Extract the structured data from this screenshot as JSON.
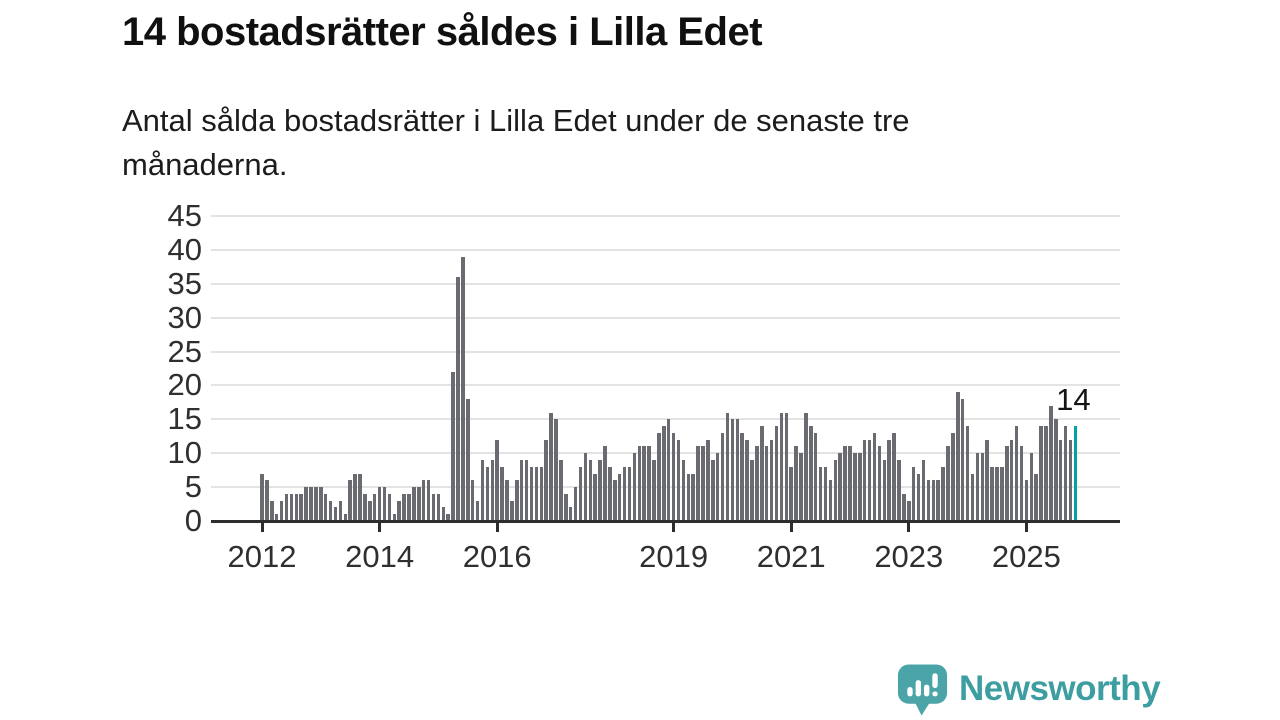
{
  "header": {
    "title": "14 bostadsrätter såldes i Lilla Edet",
    "subtitle_line1": "Antal sålda bostadsrätter i Lilla Edet under de senaste tre",
    "subtitle_line2": "månaderna."
  },
  "chart_data": {
    "type": "bar",
    "title": "14 bostadsrätter såldes i Lilla Edet",
    "subtitle": "Antal sålda bostadsrätter i Lilla Edet under de senaste tre månaderna.",
    "x_start": "2012-01",
    "x_end": "2025-11",
    "x_unit": "month",
    "values": [
      7,
      6,
      3,
      1,
      3,
      4,
      4,
      4,
      4,
      5,
      5,
      5,
      5,
      4,
      3,
      2,
      3,
      1,
      6,
      7,
      7,
      4,
      3,
      4,
      5,
      5,
      4,
      1,
      3,
      4,
      4,
      5,
      5,
      6,
      6,
      4,
      4,
      2,
      1,
      22,
      36,
      39,
      18,
      6,
      3,
      9,
      8,
      9,
      12,
      8,
      6,
      3,
      6,
      9,
      9,
      8,
      8,
      8,
      12,
      16,
      15,
      9,
      4,
      2,
      5,
      8,
      10,
      9,
      7,
      9,
      11,
      8,
      6,
      7,
      8,
      8,
      10,
      11,
      11,
      11,
      9,
      13,
      14,
      15,
      13,
      12,
      9,
      7,
      7,
      11,
      11,
      12,
      9,
      10,
      13,
      16,
      15,
      15,
      13,
      12,
      9,
      11,
      14,
      11,
      12,
      14,
      16,
      16,
      8,
      11,
      10,
      16,
      14,
      13,
      8,
      8,
      6,
      9,
      10,
      11,
      11,
      10,
      10,
      12,
      12,
      13,
      11,
      9,
      12,
      13,
      9,
      4,
      3,
      8,
      7,
      9,
      6,
      6,
      6,
      8,
      11,
      13,
      19,
      18,
      14,
      7,
      10,
      10,
      12,
      8,
      8,
      8,
      11,
      12,
      14,
      11,
      6,
      10,
      7,
      14,
      14,
      17,
      15,
      12,
      14,
      12,
      14
    ],
    "highlight_index": 166,
    "highlight_value": 14,
    "annotation": "14",
    "ylim": [
      0,
      45
    ],
    "yticks": [
      0,
      5,
      10,
      15,
      20,
      25,
      30,
      35,
      40,
      45
    ],
    "xtick_years": [
      2012,
      2014,
      2016,
      2019,
      2021,
      2023,
      2025
    ],
    "grid": "horizontal",
    "legend": "none",
    "colors": {
      "bar": "#6a6a71",
      "highlight": "#00a3a4",
      "axis": "#2d2d2d",
      "grid": "#e3e3e3",
      "tick_label": "#2f2f2f"
    }
  },
  "footer": {
    "brand": "Newsworthy",
    "brand_color": "#3d9ea2",
    "icon_color": "#4ba4a8"
  }
}
